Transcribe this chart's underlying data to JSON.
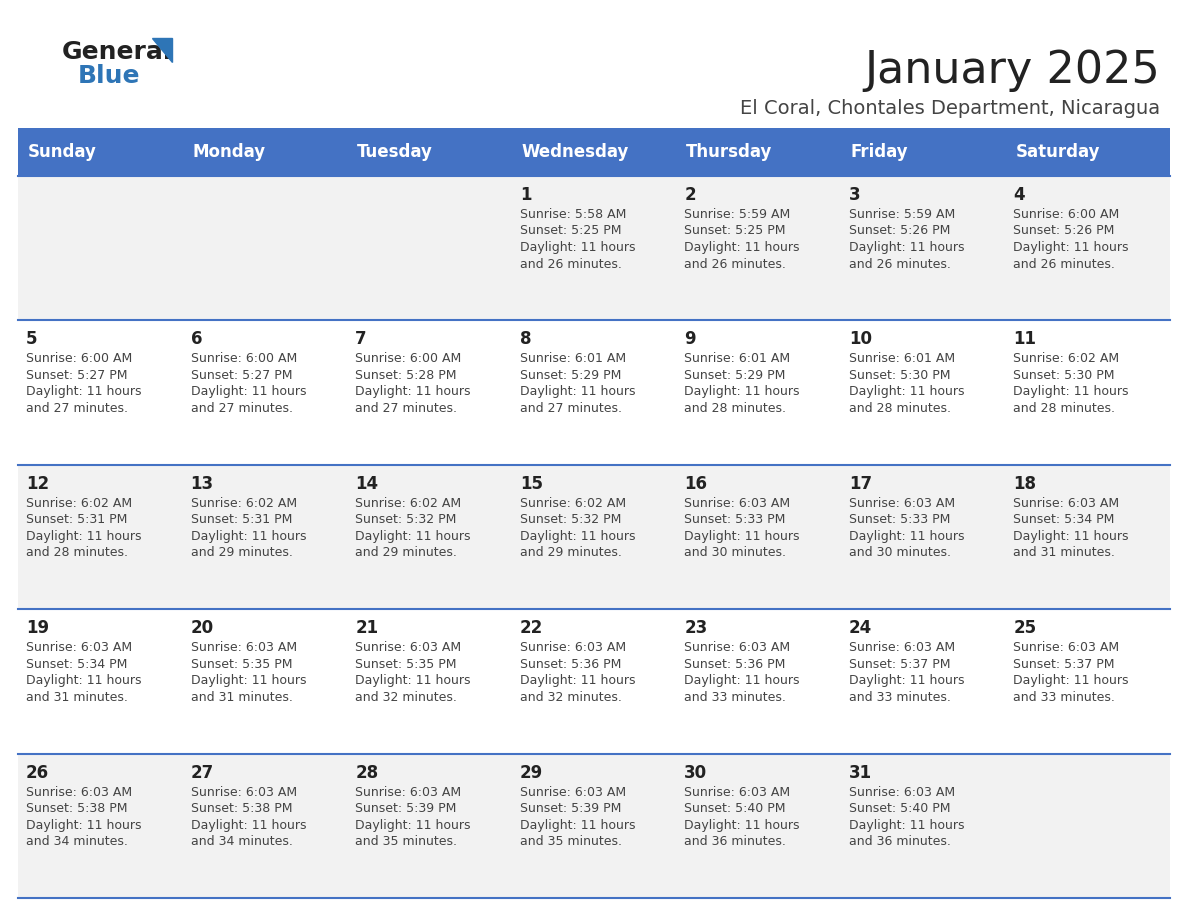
{
  "title": "January 2025",
  "subtitle": "El Coral, Chontales Department, Nicaragua",
  "header_bg": "#4472C4",
  "header_text_color": "#FFFFFF",
  "cell_bg_odd": "#F2F2F2",
  "cell_bg_even": "#FFFFFF",
  "row_line_color": "#4472C4",
  "days_of_week": [
    "Sunday",
    "Monday",
    "Tuesday",
    "Wednesday",
    "Thursday",
    "Friday",
    "Saturday"
  ],
  "calendar": [
    [
      {
        "day": "",
        "sunrise": "",
        "sunset": "",
        "daylight": ""
      },
      {
        "day": "",
        "sunrise": "",
        "sunset": "",
        "daylight": ""
      },
      {
        "day": "",
        "sunrise": "",
        "sunset": "",
        "daylight": ""
      },
      {
        "day": "1",
        "sunrise": "5:58 AM",
        "sunset": "5:25 PM",
        "daylight_l1": "11 hours",
        "daylight_l2": "and 26 minutes."
      },
      {
        "day": "2",
        "sunrise": "5:59 AM",
        "sunset": "5:25 PM",
        "daylight_l1": "11 hours",
        "daylight_l2": "and 26 minutes."
      },
      {
        "day": "3",
        "sunrise": "5:59 AM",
        "sunset": "5:26 PM",
        "daylight_l1": "11 hours",
        "daylight_l2": "and 26 minutes."
      },
      {
        "day": "4",
        "sunrise": "6:00 AM",
        "sunset": "5:26 PM",
        "daylight_l1": "11 hours",
        "daylight_l2": "and 26 minutes."
      }
    ],
    [
      {
        "day": "5",
        "sunrise": "6:00 AM",
        "sunset": "5:27 PM",
        "daylight_l1": "11 hours",
        "daylight_l2": "and 27 minutes."
      },
      {
        "day": "6",
        "sunrise": "6:00 AM",
        "sunset": "5:27 PM",
        "daylight_l1": "11 hours",
        "daylight_l2": "and 27 minutes."
      },
      {
        "day": "7",
        "sunrise": "6:00 AM",
        "sunset": "5:28 PM",
        "daylight_l1": "11 hours",
        "daylight_l2": "and 27 minutes."
      },
      {
        "day": "8",
        "sunrise": "6:01 AM",
        "sunset": "5:29 PM",
        "daylight_l1": "11 hours",
        "daylight_l2": "and 27 minutes."
      },
      {
        "day": "9",
        "sunrise": "6:01 AM",
        "sunset": "5:29 PM",
        "daylight_l1": "11 hours",
        "daylight_l2": "and 28 minutes."
      },
      {
        "day": "10",
        "sunrise": "6:01 AM",
        "sunset": "5:30 PM",
        "daylight_l1": "11 hours",
        "daylight_l2": "and 28 minutes."
      },
      {
        "day": "11",
        "sunrise": "6:02 AM",
        "sunset": "5:30 PM",
        "daylight_l1": "11 hours",
        "daylight_l2": "and 28 minutes."
      }
    ],
    [
      {
        "day": "12",
        "sunrise": "6:02 AM",
        "sunset": "5:31 PM",
        "daylight_l1": "11 hours",
        "daylight_l2": "and 28 minutes."
      },
      {
        "day": "13",
        "sunrise": "6:02 AM",
        "sunset": "5:31 PM",
        "daylight_l1": "11 hours",
        "daylight_l2": "and 29 minutes."
      },
      {
        "day": "14",
        "sunrise": "6:02 AM",
        "sunset": "5:32 PM",
        "daylight_l1": "11 hours",
        "daylight_l2": "and 29 minutes."
      },
      {
        "day": "15",
        "sunrise": "6:02 AM",
        "sunset": "5:32 PM",
        "daylight_l1": "11 hours",
        "daylight_l2": "and 29 minutes."
      },
      {
        "day": "16",
        "sunrise": "6:03 AM",
        "sunset": "5:33 PM",
        "daylight_l1": "11 hours",
        "daylight_l2": "and 30 minutes."
      },
      {
        "day": "17",
        "sunrise": "6:03 AM",
        "sunset": "5:33 PM",
        "daylight_l1": "11 hours",
        "daylight_l2": "and 30 minutes."
      },
      {
        "day": "18",
        "sunrise": "6:03 AM",
        "sunset": "5:34 PM",
        "daylight_l1": "11 hours",
        "daylight_l2": "and 31 minutes."
      }
    ],
    [
      {
        "day": "19",
        "sunrise": "6:03 AM",
        "sunset": "5:34 PM",
        "daylight_l1": "11 hours",
        "daylight_l2": "and 31 minutes."
      },
      {
        "day": "20",
        "sunrise": "6:03 AM",
        "sunset": "5:35 PM",
        "daylight_l1": "11 hours",
        "daylight_l2": "and 31 minutes."
      },
      {
        "day": "21",
        "sunrise": "6:03 AM",
        "sunset": "5:35 PM",
        "daylight_l1": "11 hours",
        "daylight_l2": "and 32 minutes."
      },
      {
        "day": "22",
        "sunrise": "6:03 AM",
        "sunset": "5:36 PM",
        "daylight_l1": "11 hours",
        "daylight_l2": "and 32 minutes."
      },
      {
        "day": "23",
        "sunrise": "6:03 AM",
        "sunset": "5:36 PM",
        "daylight_l1": "11 hours",
        "daylight_l2": "and 33 minutes."
      },
      {
        "day": "24",
        "sunrise": "6:03 AM",
        "sunset": "5:37 PM",
        "daylight_l1": "11 hours",
        "daylight_l2": "and 33 minutes."
      },
      {
        "day": "25",
        "sunrise": "6:03 AM",
        "sunset": "5:37 PM",
        "daylight_l1": "11 hours",
        "daylight_l2": "and 33 minutes."
      }
    ],
    [
      {
        "day": "26",
        "sunrise": "6:03 AM",
        "sunset": "5:38 PM",
        "daylight_l1": "11 hours",
        "daylight_l2": "and 34 minutes."
      },
      {
        "day": "27",
        "sunrise": "6:03 AM",
        "sunset": "5:38 PM",
        "daylight_l1": "11 hours",
        "daylight_l2": "and 34 minutes."
      },
      {
        "day": "28",
        "sunrise": "6:03 AM",
        "sunset": "5:39 PM",
        "daylight_l1": "11 hours",
        "daylight_l2": "and 35 minutes."
      },
      {
        "day": "29",
        "sunrise": "6:03 AM",
        "sunset": "5:39 PM",
        "daylight_l1": "11 hours",
        "daylight_l2": "and 35 minutes."
      },
      {
        "day": "30",
        "sunrise": "6:03 AM",
        "sunset": "5:40 PM",
        "daylight_l1": "11 hours",
        "daylight_l2": "and 36 minutes."
      },
      {
        "day": "31",
        "sunrise": "6:03 AM",
        "sunset": "5:40 PM",
        "daylight_l1": "11 hours",
        "daylight_l2": "and 36 minutes."
      },
      {
        "day": "",
        "sunrise": "",
        "sunset": "",
        "daylight_l1": "",
        "daylight_l2": ""
      }
    ]
  ],
  "logo_general_color": "#222222",
  "logo_blue_color": "#2E75B6",
  "logo_triangle_color": "#2E75B6",
  "title_color": "#222222",
  "subtitle_color": "#444444",
  "day_num_color": "#222222",
  "cell_text_color": "#444444",
  "header_font_size": 12,
  "day_num_font_size": 12,
  "cell_text_font_size": 9,
  "title_font_size": 32,
  "subtitle_font_size": 14
}
